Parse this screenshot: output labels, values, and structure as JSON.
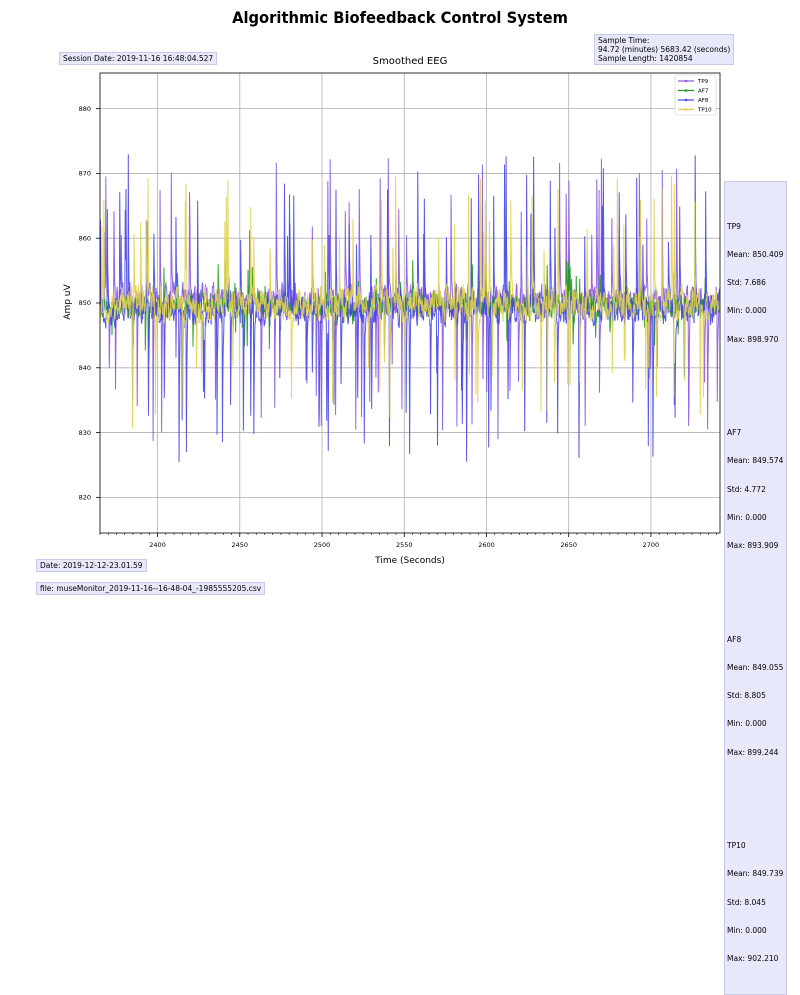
{
  "suptitle": "Algorithmic Biofeedback Control System",
  "session_date": "Session Date: 2019-11-16 16:48:04.527",
  "sample_info": {
    "line1": "Sample Time:",
    "line2": "94.72 (minutes) 5683.42 (seconds)",
    "line3": "Sample Length: 1420854"
  },
  "footer": {
    "date": "Date: 2019-12-12-23.01.59",
    "file": "file: museMonitor_2019-11-16--16-48-04_-1985555205.csv"
  },
  "stats": [
    {
      "name": "TP9",
      "mean": "Mean: 850.409",
      "std": "Std: 7.686",
      "min": "Min: 0.000",
      "max": "Max: 898.970"
    },
    {
      "name": "AF7",
      "mean": "Mean: 849.574",
      "std": "Std: 4.772",
      "min": "Min: 0.000",
      "max": "Max: 893.909"
    },
    {
      "name": "AF8",
      "mean": "Mean: 849.055",
      "std": "Std: 8.805",
      "min": "Min: 0.000",
      "max": "Max: 899.244"
    },
    {
      "name": "TP10",
      "mean": "Mean: 849.739",
      "std": "Std: 8.045",
      "min": "Min: 0.000",
      "max": "Max: 902.210"
    }
  ],
  "chart_data": {
    "type": "line",
    "title": "Smoothed EEG",
    "xlabel": "Time (Seconds)",
    "ylabel": "Amp uV",
    "xlim": [
      2365,
      2742
    ],
    "ylim": [
      814.5,
      885.5
    ],
    "xticks": [
      2400,
      2450,
      2500,
      2550,
      2600,
      2650,
      2700
    ],
    "yticks": [
      820,
      830,
      840,
      850,
      860,
      870,
      880
    ],
    "grid": true,
    "legend_position": "top-right",
    "series": [
      {
        "name": "TP9",
        "color": "#8a55e0",
        "center": 850.5,
        "spread": 3.5,
        "spike_height": 22,
        "spike_prob": 0.05,
        "seed": 11
      },
      {
        "name": "AF7",
        "color": "#1f9a1f",
        "center": 849.6,
        "spread": 2.6,
        "spike_height": 7,
        "spike_prob": 0.03,
        "seed": 23
      },
      {
        "name": "AF8",
        "color": "#4646e6",
        "center": 849.0,
        "spread": 3.6,
        "spike_height": 24,
        "spike_prob": 0.055,
        "seed": 37
      },
      {
        "name": "TP10",
        "color": "#e0d050",
        "center": 849.8,
        "spread": 3.8,
        "spike_height": 20,
        "spike_prob": 0.05,
        "seed": 53
      }
    ]
  }
}
